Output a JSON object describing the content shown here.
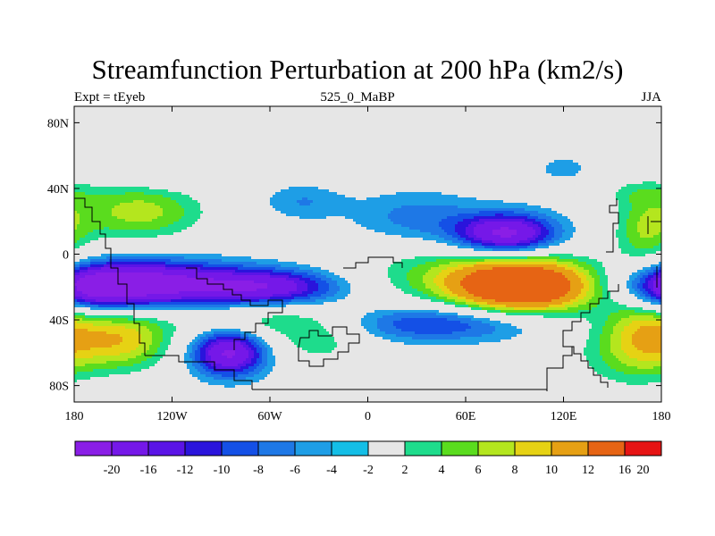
{
  "title": "Streamfunction Perturbation at 200 hPa (km2/s)",
  "subtitle_left": "Expt = tEyeb",
  "subtitle_center": "525_0_MaBP",
  "subtitle_right": "JJA",
  "chart_data": {
    "type": "heatmap",
    "title": "Streamfunction Perturbation at 200 hPa (km2/s)",
    "xlabel": "",
    "ylabel": "",
    "xlim": [
      -180,
      180
    ],
    "ylim": [
      -90,
      90
    ],
    "x_ticks": [
      {
        "value": -180,
        "label": "180"
      },
      {
        "value": -120,
        "label": "120W"
      },
      {
        "value": -60,
        "label": "60W"
      },
      {
        "value": 0,
        "label": "0"
      },
      {
        "value": 60,
        "label": "60E"
      },
      {
        "value": 120,
        "label": "120E"
      },
      {
        "value": 180,
        "label": "180"
      }
    ],
    "y_ticks": [
      {
        "value": 80,
        "label": "80N"
      },
      {
        "value": 40,
        "label": "40N"
      },
      {
        "value": 0,
        "label": "0"
      },
      {
        "value": -40,
        "label": "40S"
      },
      {
        "value": -80,
        "label": "80S"
      }
    ],
    "levels": [
      -20,
      -16,
      -12,
      -10,
      -8,
      -6,
      -4,
      -2,
      2,
      4,
      6,
      8,
      10,
      12,
      16,
      20
    ],
    "level_labels": [
      "-20",
      "-16",
      "-12",
      "-10",
      "-8",
      "-6",
      "-4",
      "-2",
      "2",
      "4",
      "6",
      "8",
      "10",
      "12",
      "16",
      "20"
    ],
    "colors": [
      "#8a1ee6",
      "#7518e8",
      "#5a14e6",
      "#2a14dc",
      "#1450e6",
      "#1e78e6",
      "#1e9ee6",
      "#14bee6",
      "#e6e6e6",
      "#1edc8c",
      "#5adc1e",
      "#b4e61e",
      "#e6d214",
      "#e6a014",
      "#e66414",
      "#e61414"
    ],
    "field_centers": [
      {
        "lon": 95,
        "lat": -20,
        "value": 22,
        "sx": 30,
        "sy": 11
      },
      {
        "lon": 65,
        "lat": -12,
        "value": 7,
        "sx": 55,
        "sy": 14
      },
      {
        "lon": 170,
        "lat": -48,
        "value": 9,
        "sx": 18,
        "sy": 18
      },
      {
        "lon": 150,
        "lat": -60,
        "value": 4,
        "sx": 25,
        "sy": 18
      },
      {
        "lon": 85,
        "lat": 12,
        "value": -18,
        "sx": 22,
        "sy": 9
      },
      {
        "lon": 30,
        "lat": 22,
        "value": -5,
        "sx": 28,
        "sy": 12
      },
      {
        "lon": -140,
        "lat": -18,
        "value": -19,
        "sx": 40,
        "sy": 10
      },
      {
        "lon": -60,
        "lat": -20,
        "value": -14,
        "sx": 32,
        "sy": 8
      },
      {
        "lon": -170,
        "lat": -22,
        "value": -10,
        "sx": 20,
        "sy": 9
      },
      {
        "lon": 40,
        "lat": -42,
        "value": -9,
        "sx": 45,
        "sy": 8
      },
      {
        "lon": -85,
        "lat": -60,
        "value": -17,
        "sx": 16,
        "sy": 10
      },
      {
        "lon": -140,
        "lat": 26,
        "value": 9,
        "sx": 30,
        "sy": 13
      },
      {
        "lon": 170,
        "lat": 14,
        "value": 7,
        "sx": 14,
        "sy": 16
      },
      {
        "lon": -150,
        "lat": -52,
        "value": 11,
        "sx": 22,
        "sy": 14
      },
      {
        "lon": -60,
        "lat": -40,
        "value": 6,
        "sx": 40,
        "sy": 8
      },
      {
        "lon": -30,
        "lat": -54,
        "value": 5,
        "sx": 22,
        "sy": 10
      },
      {
        "lon": -40,
        "lat": 32,
        "value": -4,
        "sx": 18,
        "sy": 8
      },
      {
        "lon": 0,
        "lat": 55,
        "value": 3,
        "sx": 35,
        "sy": 7
      },
      {
        "lon": 120,
        "lat": 52,
        "value": -3,
        "sx": 12,
        "sy": 6
      },
      {
        "lon": -120,
        "lat": 49,
        "value": -3,
        "sx": 22,
        "sy": 6
      },
      {
        "lon": 165,
        "lat": 38,
        "value": 3,
        "sx": 18,
        "sy": 6
      }
    ]
  }
}
